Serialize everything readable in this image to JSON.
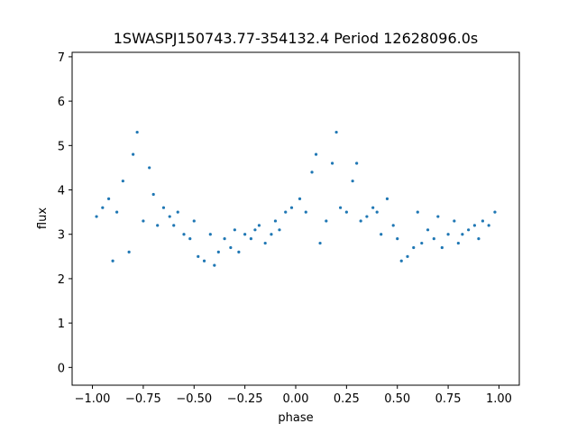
{
  "chart_data": {
    "type": "scatter",
    "title": "1SWASPJ150743.77-354132.4 Period 12628096.0s",
    "xlabel": "phase",
    "ylabel": "flux",
    "xlim": [
      -1.1,
      1.1
    ],
    "ylim": [
      -0.4,
      7.1
    ],
    "xticks": [
      -1.0,
      -0.75,
      -0.5,
      -0.25,
      0.0,
      0.25,
      0.5,
      0.75,
      1.0
    ],
    "xtick_labels": [
      "−1.00",
      "−0.75",
      "−0.50",
      "−0.25",
      "0.00",
      "0.25",
      "0.50",
      "0.75",
      "1.00"
    ],
    "yticks": [
      0,
      1,
      2,
      3,
      4,
      5,
      6,
      7
    ],
    "ytick_labels": [
      "0",
      "1",
      "2",
      "3",
      "4",
      "5",
      "6",
      "7"
    ],
    "grid": false,
    "marker_color": "#1f77b4",
    "series": [
      {
        "name": "",
        "x": [
          -0.98,
          -0.95,
          -0.92,
          -0.9,
          -0.88,
          -0.85,
          -0.82,
          -0.8,
          -0.78,
          -0.75,
          -0.72,
          -0.7,
          -0.68,
          -0.65,
          -0.62,
          -0.6,
          -0.58,
          -0.55,
          -0.52,
          -0.5,
          -0.48,
          -0.45,
          -0.42,
          -0.4,
          -0.38,
          -0.35,
          -0.32,
          -0.3,
          -0.28,
          -0.25,
          -0.22,
          -0.2,
          -0.18,
          -0.15,
          -0.12,
          -0.1,
          -0.08,
          -0.05,
          -0.02,
          0.02,
          0.05,
          0.08,
          0.1,
          0.12,
          0.15,
          0.18,
          0.2,
          0.22,
          0.25,
          0.28,
          0.3,
          0.32,
          0.35,
          0.38,
          0.4,
          0.42,
          0.45,
          0.48,
          0.5,
          0.52,
          0.55,
          0.58,
          0.6,
          0.62,
          0.65,
          0.68,
          0.7,
          0.72,
          0.75,
          0.78,
          0.8,
          0.82,
          0.85,
          0.88,
          0.9,
          0.92,
          0.95,
          0.98
        ],
        "y": [
          3.4,
          3.6,
          3.8,
          2.4,
          3.5,
          4.2,
          2.6,
          4.8,
          5.3,
          3.3,
          4.5,
          3.9,
          3.2,
          3.6,
          3.4,
          3.2,
          3.5,
          3.0,
          2.9,
          3.3,
          2.5,
          2.4,
          3.0,
          2.3,
          2.6,
          2.9,
          2.7,
          3.1,
          2.6,
          3.0,
          2.9,
          3.1,
          3.2,
          2.8,
          3.0,
          3.3,
          3.1,
          3.5,
          3.6,
          3.8,
          3.5,
          4.4,
          4.8,
          2.8,
          3.3,
          4.6,
          5.3,
          3.6,
          3.5,
          4.2,
          4.6,
          3.3,
          3.4,
          3.6,
          3.5,
          3.0,
          3.8,
          3.2,
          2.9,
          2.4,
          2.5,
          2.7,
          3.5,
          2.8,
          3.1,
          2.9,
          3.4,
          2.7,
          3.0,
          3.3,
          2.8,
          3.0,
          3.1,
          3.2,
          2.9,
          3.3,
          3.2,
          3.5
        ]
      }
    ]
  }
}
